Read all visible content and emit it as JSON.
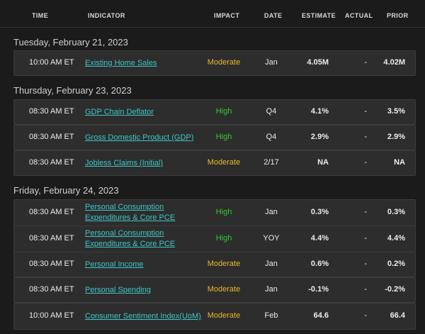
{
  "columns": {
    "time": "TIME",
    "indicator": "INDICATOR",
    "impact": "IMPACT",
    "date": "DATE",
    "estimate": "ESTIMATE",
    "actual": "ACTUAL",
    "prior": "PRIOR"
  },
  "impact_colors": {
    "High": "#33c933",
    "Moderate": "#e9b82b"
  },
  "days": [
    {
      "label": "Tuesday, February 21, 2023",
      "rows": [
        {
          "time": "10:00 AM ET",
          "indicator": "Existing Home Sales",
          "impact": "Moderate",
          "date": "Jan",
          "estimate": "4.05M",
          "actual": "-",
          "prior": "4.02M"
        }
      ]
    },
    {
      "label": "Thursday, February 23, 2023",
      "rows": [
        {
          "time": "08:30 AM ET",
          "indicator": "GDP Chain Deflator",
          "impact": "High",
          "date": "Q4",
          "estimate": "4.1%",
          "actual": "-",
          "prior": "3.5%"
        },
        {
          "time": "08:30 AM ET",
          "indicator": "Gross Domestic Product (GDP)",
          "impact": "High",
          "date": "Q4",
          "estimate": "2.9%",
          "actual": "-",
          "prior": "2.9%"
        },
        {
          "time": "08:30 AM ET",
          "indicator": "Jobless Claims (Initial)",
          "impact": "Moderate",
          "date": "2/17",
          "estimate": "NA",
          "actual": "-",
          "prior": "NA"
        }
      ]
    },
    {
      "label": "Friday, February 24, 2023",
      "rows": [
        {
          "time": "08:30 AM ET",
          "indicator": "Personal Consumption Expenditures & Core PCE",
          "impact": "High",
          "date": "Jan",
          "estimate": "0.3%",
          "actual": "-",
          "prior": "0.3%"
        },
        {
          "time": "08:30 AM ET",
          "indicator": "Personal Consumption Expenditures & Core PCE",
          "impact": "High",
          "date": "YOY",
          "estimate": "4.4%",
          "actual": "-",
          "prior": "4.4%"
        },
        {
          "time": "08:30 AM ET",
          "indicator": "Personal Income",
          "impact": "Moderate",
          "date": "Jan",
          "estimate": "0.6%",
          "actual": "-",
          "prior": "0.2%"
        },
        {
          "time": "08:30 AM ET",
          "indicator": "Personal Spending",
          "impact": "Moderate",
          "date": "Jan",
          "estimate": "-0.1%",
          "actual": "-",
          "prior": "-0.2%"
        },
        {
          "time": "10:00 AM ET",
          "indicator": "Consumer Sentiment Index(UoM)",
          "impact": "Moderate",
          "date": "Feb",
          "estimate": "64.6",
          "actual": "-",
          "prior": "66.4"
        }
      ]
    }
  ]
}
